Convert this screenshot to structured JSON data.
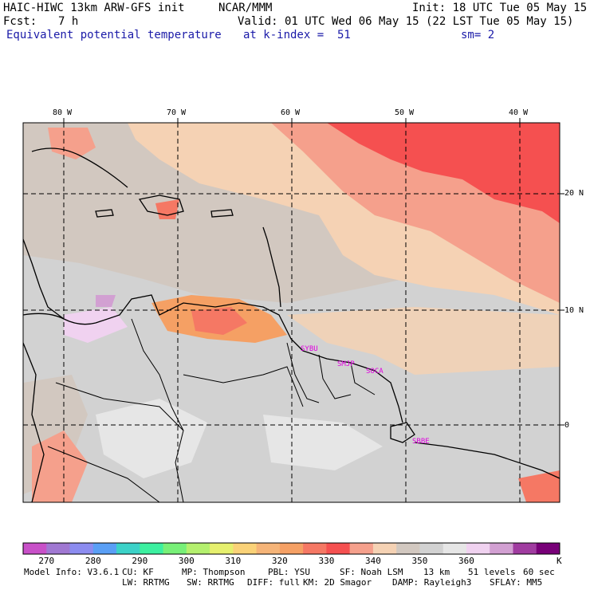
{
  "header": {
    "model_title": "HAIC-HIWC 13km ARW-GFS init",
    "org": "NCAR/MMM",
    "init": "Init: 18 UTC Tue 05 May 15",
    "fcst_label": "Fcst:",
    "fcst_value": "7 h",
    "valid": "Valid: 01 UTC Wed 06 May 15 (22 LST Tue 05 May 15)",
    "field": "Equivalent potential temperature",
    "level": "at k-index =  51",
    "smooth": "sm= 2"
  },
  "map": {
    "lon_labels": [
      "80 W",
      "70 W",
      "60 W",
      "50 W",
      "40 W"
    ],
    "lat_labels": [
      "20 N",
      "10 N",
      "0"
    ],
    "stations": [
      "SYBU",
      "SMJP",
      "SOCA",
      "SBBE"
    ]
  },
  "colorbar": {
    "colors": [
      "#c850c8",
      "#a078d2",
      "#8c8cf0",
      "#5a9ff5",
      "#3cd2c8",
      "#3cf0a0",
      "#78f078",
      "#b4f06e",
      "#e6f06e",
      "#fad278",
      "#f5b478",
      "#f5a064",
      "#f57864",
      "#f55050",
      "#f5a08c",
      "#f5d2b4",
      "#d2c8c0",
      "#d2d2d2",
      "#e6e6e6",
      "#f0d2f0",
      "#d2a0d2",
      "#a03ca0",
      "#780078"
    ],
    "labels": [
      "270",
      "280",
      "290",
      "300",
      "310",
      "320",
      "330",
      "340",
      "350",
      "360"
    ],
    "unit": "K"
  },
  "footer": {
    "line1": [
      "Model Info: V3.6.1",
      "CU: KF",
      "MP: Thompson",
      "PBL: YSU",
      "SF: Noah LSM",
      "13 km",
      "51 levels",
      "60 sec"
    ],
    "line2": [
      "LW: RRTMG",
      "SW: RRTMG",
      "DIFF: full",
      "KM: 2D Smagor",
      "DAMP: Rayleigh3",
      "SFLAY: MM5"
    ]
  }
}
